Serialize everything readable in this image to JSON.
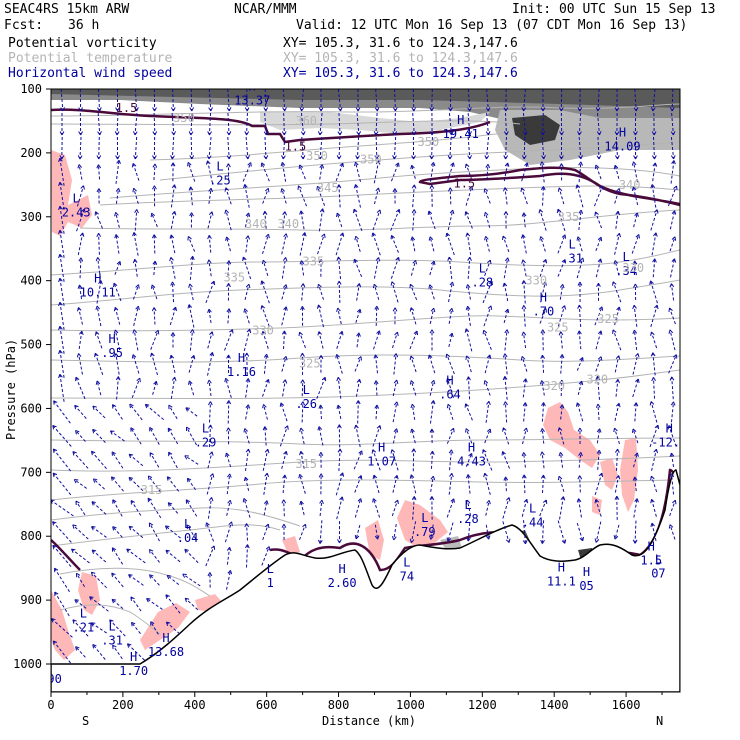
{
  "header": {
    "model": "SEAC4RS 15km ARW",
    "org": "NCAR/MMM",
    "init": "Init: 00 UTC Sun 15 Sep 13",
    "fcst_label": "Fcst:",
    "fcst_value": "36 h",
    "valid": "Valid: 12 UTC Mon 16 Sep 13 (07 CDT Mon 16 Sep 13)",
    "layers": [
      {
        "name": "Potential vorticity",
        "xy": "XY= 105.3, 31.6 to 124.3,147.6",
        "color": "#000000"
      },
      {
        "name": "Potential temperature",
        "xy": "XY= 105.3, 31.6 to 124.3,147.6",
        "color": "#b4b4b4"
      },
      {
        "name": "Horizontal wind speed",
        "xy": "XY= 105.3, 31.6 to 124.3,147.6",
        "color": "#0000a0"
      }
    ]
  },
  "colors": {
    "pv_shading": "#ffb8b8",
    "pv_contour": "#4a0a3a",
    "theta_contour": "#b4b4b4",
    "wind": "#1010a0",
    "terrain": "#000000"
  },
  "chart_data": {
    "type": "cross-section",
    "xlabel": "Distance (km)",
    "ylabel": "Pressure (hPa)",
    "xlim": [
      0,
      1750
    ],
    "ylim": [
      1000,
      100
    ],
    "xticks": [
      0,
      200,
      400,
      600,
      800,
      1000,
      1200,
      1400,
      1600
    ],
    "yticks": [
      100,
      200,
      300,
      400,
      500,
      600,
      700,
      800,
      900,
      1000
    ],
    "end_labels": {
      "left": "S",
      "right": "N"
    },
    "theta_labels": [
      {
        "x": 370,
        "p": 145,
        "t": "350"
      },
      {
        "x": 710,
        "p": 150,
        "t": "360"
      },
      {
        "x": 740,
        "p": 205,
        "t": "350"
      },
      {
        "x": 890,
        "p": 210,
        "t": "350"
      },
      {
        "x": 1050,
        "p": 183,
        "t": "350"
      },
      {
        "x": 770,
        "p": 255,
        "t": "345"
      },
      {
        "x": 1610,
        "p": 250,
        "t": "340"
      },
      {
        "x": 570,
        "p": 311,
        "t": "340"
      },
      {
        "x": 660,
        "p": 311,
        "t": "340"
      },
      {
        "x": 1440,
        "p": 300,
        "t": "335"
      },
      {
        "x": 730,
        "p": 370,
        "t": "335"
      },
      {
        "x": 510,
        "p": 395,
        "t": "335"
      },
      {
        "x": 1350,
        "p": 400,
        "t": "330"
      },
      {
        "x": 1620,
        "p": 380,
        "t": "330"
      },
      {
        "x": 590,
        "p": 478,
        "t": "330"
      },
      {
        "x": 1410,
        "p": 473,
        "t": "325"
      },
      {
        "x": 1550,
        "p": 460,
        "t": "325"
      },
      {
        "x": 720,
        "p": 530,
        "t": "325"
      },
      {
        "x": 1400,
        "p": 565,
        "t": "320"
      },
      {
        "x": 1520,
        "p": 555,
        "t": "320"
      },
      {
        "x": 710,
        "p": 687,
        "t": "315"
      },
      {
        "x": 280,
        "p": 728,
        "t": "315"
      }
    ],
    "pv_labels": [
      {
        "x": 210,
        "p": 130,
        "t": "1.5"
      },
      {
        "x": 680,
        "p": 190,
        "t": "1.5"
      },
      {
        "x": 1150,
        "p": 248,
        "t": "1.5"
      }
    ],
    "extrema": [
      {
        "x": 560,
        "p": 115,
        "kind": "H",
        "value": "13.37"
      },
      {
        "x": 1140,
        "p": 167,
        "kind": "H",
        "value": "19.41"
      },
      {
        "x": 1590,
        "p": 187,
        "kind": "H",
        "value": "14.09"
      },
      {
        "x": 470,
        "p": 240,
        "kind": "L",
        "value": ".25"
      },
      {
        "x": 70,
        "p": 290,
        "kind": "L",
        "value": "2.43"
      },
      {
        "x": 1450,
        "p": 362,
        "kind": "L",
        "value": ".31"
      },
      {
        "x": 1600,
        "p": 382,
        "kind": "L",
        "value": ".34"
      },
      {
        "x": 1200,
        "p": 400,
        "kind": "L",
        "value": ".28"
      },
      {
        "x": 130,
        "p": 415,
        "kind": "H",
        "value": "10.11"
      },
      {
        "x": 1370,
        "p": 445,
        "kind": "H",
        "value": ".70"
      },
      {
        "x": 170,
        "p": 510,
        "kind": "H",
        "value": ".95"
      },
      {
        "x": 530,
        "p": 540,
        "kind": "H",
        "value": "1.16"
      },
      {
        "x": 710,
        "p": 590,
        "kind": "L",
        "value": ".26"
      },
      {
        "x": 1110,
        "p": 575,
        "kind": "H",
        "value": ".64"
      },
      {
        "x": 430,
        "p": 650,
        "kind": "L",
        "value": ".29"
      },
      {
        "x": 920,
        "p": 680,
        "kind": "H",
        "value": "1.07"
      },
      {
        "x": 1170,
        "p": 680,
        "kind": "H",
        "value": "4.43"
      },
      {
        "x": 1720,
        "p": 650,
        "kind": "H",
        "value": "-12.2"
      },
      {
        "x": 1160,
        "p": 770,
        "kind": "L",
        "value": ".28"
      },
      {
        "x": 1340,
        "p": 775,
        "kind": "L",
        "value": ".44"
      },
      {
        "x": 1040,
        "p": 790,
        "kind": "L",
        "value": ".79"
      },
      {
        "x": 380,
        "p": 800,
        "kind": "L",
        "value": ".04"
      },
      {
        "x": 610,
        "p": 870,
        "kind": "L",
        "value": "1"
      },
      {
        "x": 810,
        "p": 870,
        "kind": "H",
        "value": "2.60"
      },
      {
        "x": 990,
        "p": 860,
        "kind": "L",
        "value": "74"
      },
      {
        "x": 1420,
        "p": 868,
        "kind": "H",
        "value": "11.1"
      },
      {
        "x": 1490,
        "p": 875,
        "kind": "H",
        "value": "05"
      },
      {
        "x": 1670,
        "p": 835,
        "kind": "H",
        "value": "1.5"
      },
      {
        "x": 1690,
        "p": 855,
        "kind": "L",
        "value": "07"
      },
      {
        "x": 90,
        "p": 940,
        "kind": "L",
        "value": ".21"
      },
      {
        "x": 170,
        "p": 960,
        "kind": "L",
        "value": ".31"
      },
      {
        "x": 320,
        "p": 978,
        "kind": "H",
        "value": "13.68"
      },
      {
        "x": 230,
        "p": 1008,
        "kind": "H",
        "value": "1.70"
      },
      {
        "x": 10,
        "p": 1020,
        "kind": "",
        "value": "90"
      }
    ]
  }
}
